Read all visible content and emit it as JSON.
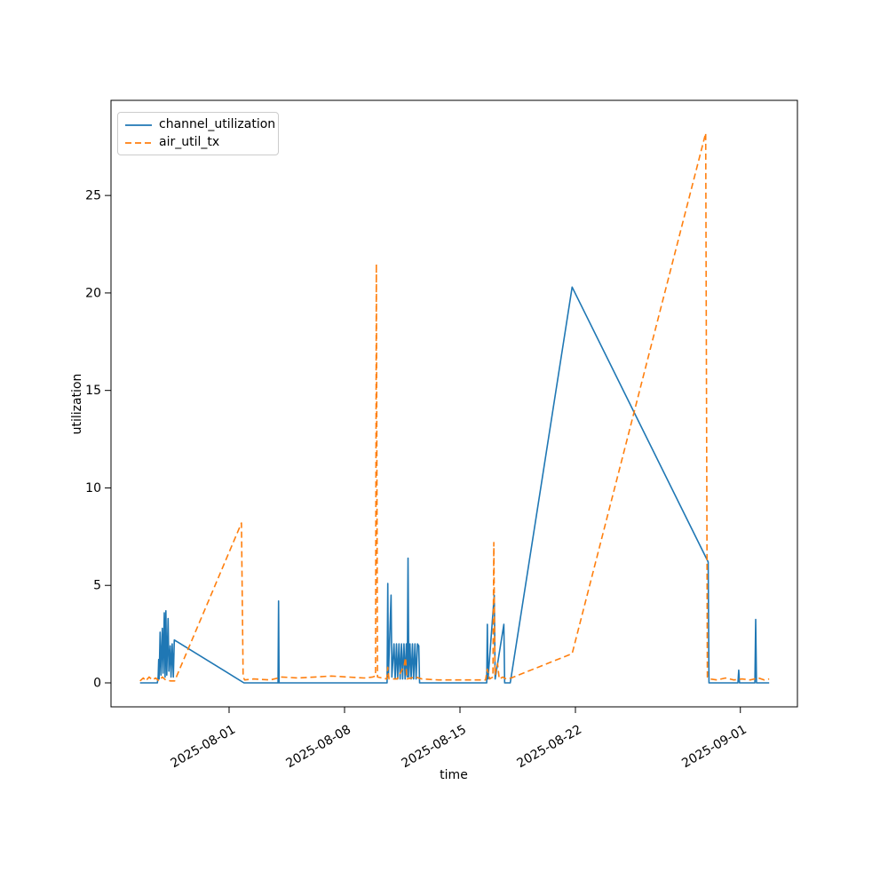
{
  "figure": {
    "background": "#ffffff",
    "frame_color": "#000000"
  },
  "chart_data": {
    "type": "line",
    "title": "",
    "xlabel": "time",
    "ylabel": "utilization",
    "grid": false,
    "legend": {
      "position": "upper left",
      "entries": [
        "channel_utilization",
        "air_util_tx"
      ]
    },
    "x_axis": {
      "unit": "days relative to 2025-08-01",
      "range": [
        -7.16,
        34.46
      ],
      "ticks": [
        {
          "pos": 0,
          "label": "2025-08-01"
        },
        {
          "pos": 7,
          "label": "2025-08-08"
        },
        {
          "pos": 14,
          "label": "2025-08-15"
        },
        {
          "pos": 21,
          "label": "2025-08-22"
        },
        {
          "pos": 31,
          "label": "2025-09-01"
        }
      ]
    },
    "y_axis": {
      "range": [
        -1.23,
        29.88
      ],
      "ticks": [
        0,
        5,
        10,
        15,
        20,
        25
      ]
    },
    "series": [
      {
        "name": "channel_utilization",
        "color": "#1f77b4",
        "style": "solid",
        "points": [
          [
            -5.4,
            0
          ],
          [
            -4.35,
            0
          ],
          [
            -4.3,
            0.3
          ],
          [
            -4.27,
            1.2
          ],
          [
            -4.24,
            0.2
          ],
          [
            -4.18,
            2.6
          ],
          [
            -4.13,
            0.4
          ],
          [
            -4.05,
            2.8
          ],
          [
            -4.0,
            0.5
          ],
          [
            -3.93,
            3.6
          ],
          [
            -3.88,
            0.3
          ],
          [
            -3.83,
            3.7
          ],
          [
            -3.78,
            0.4
          ],
          [
            -3.7,
            3.3
          ],
          [
            -3.65,
            0.6
          ],
          [
            -3.57,
            1.9
          ],
          [
            -3.52,
            0.3
          ],
          [
            -3.45,
            2.0
          ],
          [
            -3.38,
            0.3
          ],
          [
            -3.32,
            2.2
          ],
          [
            0.9,
            0
          ],
          [
            2.97,
            0
          ],
          [
            3.0,
            4.2
          ],
          [
            3.03,
            0
          ],
          [
            9.58,
            0
          ],
          [
            9.62,
            5.1
          ],
          [
            9.66,
            0.3
          ],
          [
            9.82,
            4.5
          ],
          [
            9.87,
            0.3
          ],
          [
            10.0,
            2.0
          ],
          [
            10.07,
            0.2
          ],
          [
            10.15,
            2.0
          ],
          [
            10.22,
            0.2
          ],
          [
            10.3,
            2.0
          ],
          [
            10.37,
            0.2
          ],
          [
            10.45,
            2.0
          ],
          [
            10.52,
            0.2
          ],
          [
            10.6,
            2.0
          ],
          [
            10.67,
            0.2
          ],
          [
            10.75,
            2.0
          ],
          [
            10.8,
            0.3
          ],
          [
            10.85,
            6.4
          ],
          [
            10.9,
            0.3
          ],
          [
            10.97,
            2.0
          ],
          [
            11.04,
            0.2
          ],
          [
            11.12,
            2.0
          ],
          [
            11.19,
            0.2
          ],
          [
            11.27,
            2.0
          ],
          [
            11.34,
            0.2
          ],
          [
            11.42,
            2.0
          ],
          [
            11.5,
            1.9
          ],
          [
            11.55,
            0
          ],
          [
            15.62,
            0
          ],
          [
            15.66,
            3.0
          ],
          [
            15.7,
            0.2
          ],
          [
            16.08,
            4.5
          ],
          [
            16.13,
            0.2
          ],
          [
            16.66,
            3.0
          ],
          [
            16.71,
            0
          ],
          [
            17.05,
            0
          ],
          [
            20.8,
            20.3
          ],
          [
            29.05,
            6.2
          ],
          [
            29.1,
            0
          ],
          [
            30.85,
            0
          ],
          [
            30.9,
            0.65
          ],
          [
            30.95,
            0
          ],
          [
            31.88,
            0
          ],
          [
            31.93,
            3.25
          ],
          [
            31.98,
            0
          ],
          [
            32.75,
            0
          ]
        ]
      },
      {
        "name": "air_util_tx",
        "color": "#ff7f0e",
        "style": "dashed",
        "points": [
          [
            -5.4,
            0.1
          ],
          [
            -5.2,
            0.25
          ],
          [
            -5.05,
            0.1
          ],
          [
            -4.85,
            0.3
          ],
          [
            -4.65,
            0.15
          ],
          [
            -4.45,
            0.25
          ],
          [
            -4.25,
            0.1
          ],
          [
            -4.05,
            0.3
          ],
          [
            -3.85,
            0.15
          ],
          [
            -3.55,
            0.1
          ],
          [
            -3.3,
            0.1
          ],
          [
            0.75,
            8.2
          ],
          [
            0.85,
            0.3
          ],
          [
            0.95,
            0.15
          ],
          [
            1.5,
            0.2
          ],
          [
            2.5,
            0.15
          ],
          [
            3.2,
            0.3
          ],
          [
            4.2,
            0.25
          ],
          [
            5.2,
            0.3
          ],
          [
            6.2,
            0.35
          ],
          [
            7.2,
            0.3
          ],
          [
            8.2,
            0.25
          ],
          [
            8.7,
            0.3
          ],
          [
            8.88,
            0.35
          ],
          [
            8.93,
            21.5
          ],
          [
            9.0,
            0.3
          ],
          [
            9.55,
            0.2
          ],
          [
            9.62,
            0.8
          ],
          [
            9.7,
            0.2
          ],
          [
            10.2,
            0.2
          ],
          [
            10.62,
            0.9
          ],
          [
            10.7,
            1.3
          ],
          [
            10.78,
            0.2
          ],
          [
            11.3,
            0.3
          ],
          [
            11.7,
            0.2
          ],
          [
            12.7,
            0.15
          ],
          [
            14.2,
            0.15
          ],
          [
            15.55,
            0.15
          ],
          [
            15.66,
            0.7
          ],
          [
            15.8,
            0.2
          ],
          [
            16.0,
            0.3
          ],
          [
            16.05,
            7.2
          ],
          [
            16.12,
            0.4
          ],
          [
            16.28,
            1.0
          ],
          [
            16.38,
            0.2
          ],
          [
            16.6,
            0.3
          ],
          [
            16.8,
            0.2
          ],
          [
            17.1,
            0.25
          ],
          [
            20.8,
            1.5
          ],
          [
            28.9,
            28.2
          ],
          [
            29.0,
            0.3
          ],
          [
            29.15,
            0.2
          ],
          [
            29.6,
            0.15
          ],
          [
            30.1,
            0.25
          ],
          [
            30.6,
            0.15
          ],
          [
            31.1,
            0.2
          ],
          [
            31.6,
            0.15
          ],
          [
            32.1,
            0.25
          ],
          [
            32.45,
            0.15
          ],
          [
            32.75,
            0.2
          ]
        ]
      }
    ]
  }
}
